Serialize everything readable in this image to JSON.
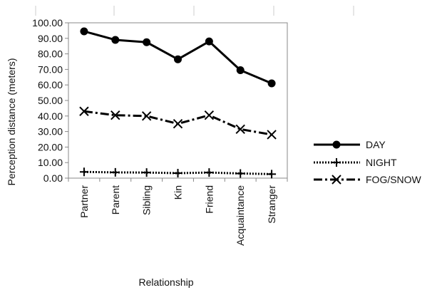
{
  "chart_data": {
    "type": "line",
    "categories": [
      "Partner",
      "Parent",
      "Sibling",
      "Kin",
      "Friend",
      "Acquaintance",
      "Stranger"
    ],
    "xlabel": "Relationship",
    "ylabel": "Perception distance (meters)",
    "ylim": [
      0,
      100
    ],
    "y_tick_step": 10,
    "y_tick_labels": [
      "0.00",
      "10.00",
      "20.00",
      "30.00",
      "40.00",
      "50.00",
      "60.00",
      "70.00",
      "80.00",
      "90.00",
      "100.00"
    ],
    "grid": false,
    "legend_position": "right",
    "series": [
      {
        "name": "DAY",
        "values": [
          94.5,
          89.0,
          87.5,
          76.5,
          88.0,
          69.5,
          61.0
        ],
        "color": "#000000",
        "line_style": "solid",
        "marker": "circle"
      },
      {
        "name": "NIGHT",
        "values": [
          4.0,
          3.7,
          3.6,
          3.2,
          3.6,
          3.0,
          2.6
        ],
        "color": "#000000",
        "line_style": "dotted",
        "marker": "plus"
      },
      {
        "name": "FOG/SNOW",
        "values": [
          43.0,
          40.5,
          40.0,
          35.0,
          40.5,
          31.5,
          28.0
        ],
        "color": "#000000",
        "line_style": "dash-dot",
        "marker": "x"
      }
    ]
  }
}
